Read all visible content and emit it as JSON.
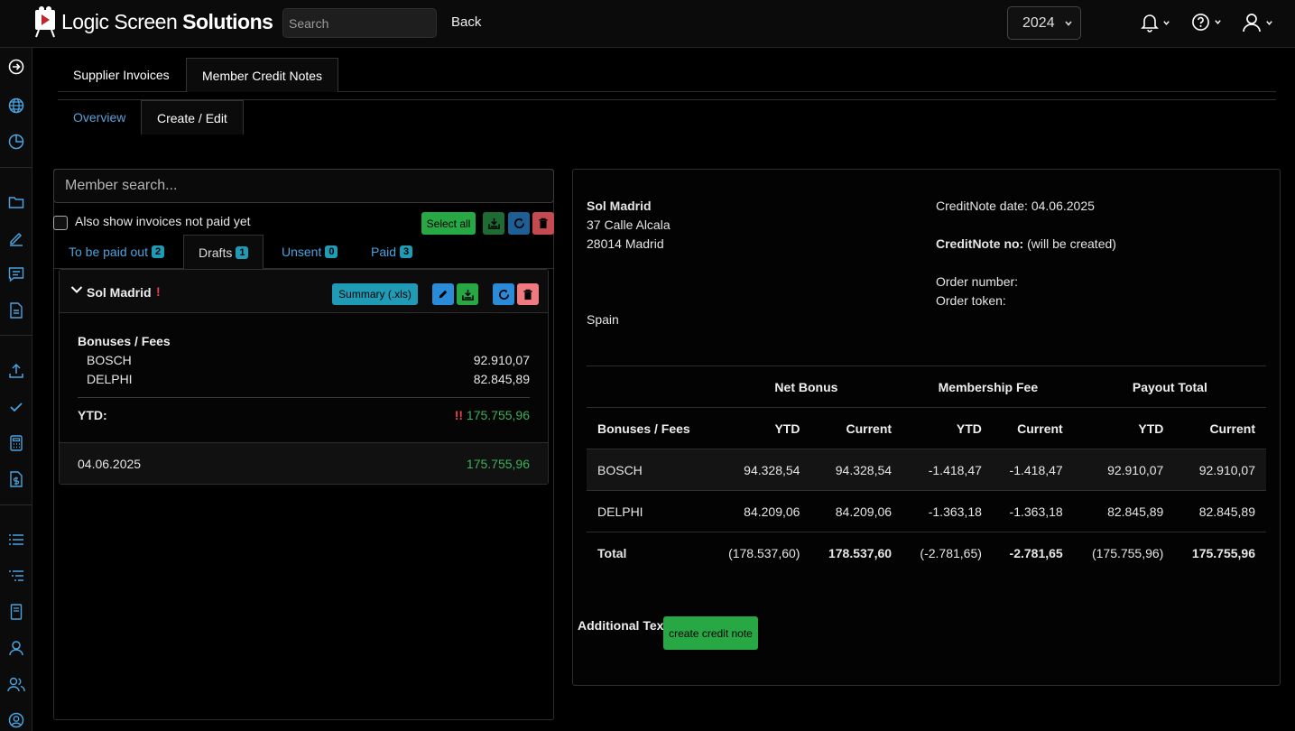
{
  "header": {
    "brand_a": "Logic Screen ",
    "brand_b": "Solutions",
    "search_placeholder": "Search",
    "back_label": "Back",
    "year": "2024",
    "icons": [
      "bell-icon",
      "help-icon",
      "user-icon"
    ]
  },
  "sidebar": {
    "icons": [
      "arrow-right-circle-icon",
      "globe-icon",
      "pie-chart-icon",
      "folder-icon",
      "pencil-icon",
      "message-icon",
      "document-icon",
      "upload-icon",
      "check-icon",
      "calculator-icon",
      "invoice-dollar-icon",
      "list-icon",
      "list-indent-icon",
      "book-icon",
      "person-icon",
      "people-icon",
      "user-circle-icon"
    ]
  },
  "tabs": {
    "main": [
      "Supplier Invoices",
      "Member Credit Notes"
    ],
    "sub": [
      "Overview",
      "Create / Edit"
    ]
  },
  "left": {
    "member_search_placeholder": "Member search...",
    "also_show_label": "Also show invoices not paid yet",
    "select_all_label": "Select all",
    "subtabs": [
      {
        "label": "To be paid out",
        "count": "2"
      },
      {
        "label": "Drafts",
        "count": "1"
      },
      {
        "label": "Unsent",
        "count": "0"
      },
      {
        "label": "Paid",
        "count": "3"
      }
    ],
    "card": {
      "member": "Sol Madrid",
      "alert": "!",
      "summary_label": "Summary (.xls)",
      "section": "Bonuses / Fees",
      "rows": [
        {
          "name": "BOSCH",
          "value": "92.910,07"
        },
        {
          "name": "DELPHI",
          "value": "82.845,89"
        }
      ],
      "ytd_label": "YTD:",
      "ytd_alert": "!!",
      "ytd_value": "175.755,96",
      "date": "04.06.2025",
      "date_value": "175.755,96"
    }
  },
  "right": {
    "address": [
      "Sol Madrid",
      "37 Calle Alcala",
      "28014 Madrid",
      "Spain"
    ],
    "creditnote_date": "CreditNote date: 04.06.2025",
    "creditnote_no_label": "CreditNote no:",
    "creditnote_no_value": " (will be created)",
    "order_number": "Order number:",
    "order_token": "Order token:",
    "groups": [
      "Net Bonus",
      "Membership Fee",
      "Payout Total"
    ],
    "columns": [
      "Bonuses / Fees",
      "YTD",
      "Current",
      "YTD",
      "Current",
      "YTD",
      "Current"
    ],
    "rows": [
      [
        "BOSCH",
        "94.328,54",
        "94.328,54",
        "-1.418,47",
        "-1.418,47",
        "92.910,07",
        "92.910,07"
      ],
      [
        "DELPHI",
        "84.209,06",
        "84.209,06",
        "-1.363,18",
        "-1.363,18",
        "82.845,89",
        "82.845,89"
      ]
    ],
    "total": [
      "Total",
      "(178.537,60)",
      "178.537,60",
      "(-2.781,65)",
      "-2.781,65",
      "(175.755,96)",
      "175.755,96"
    ],
    "additional_text": "Additional Text",
    "create_button": "create credit note"
  },
  "colors": {
    "green": "#28a745",
    "teal": "#1f9bb5",
    "blue": "#2a8bd8",
    "red": "#f07a80",
    "dark_green": "#1e6b33",
    "link": "#4aa3df"
  }
}
